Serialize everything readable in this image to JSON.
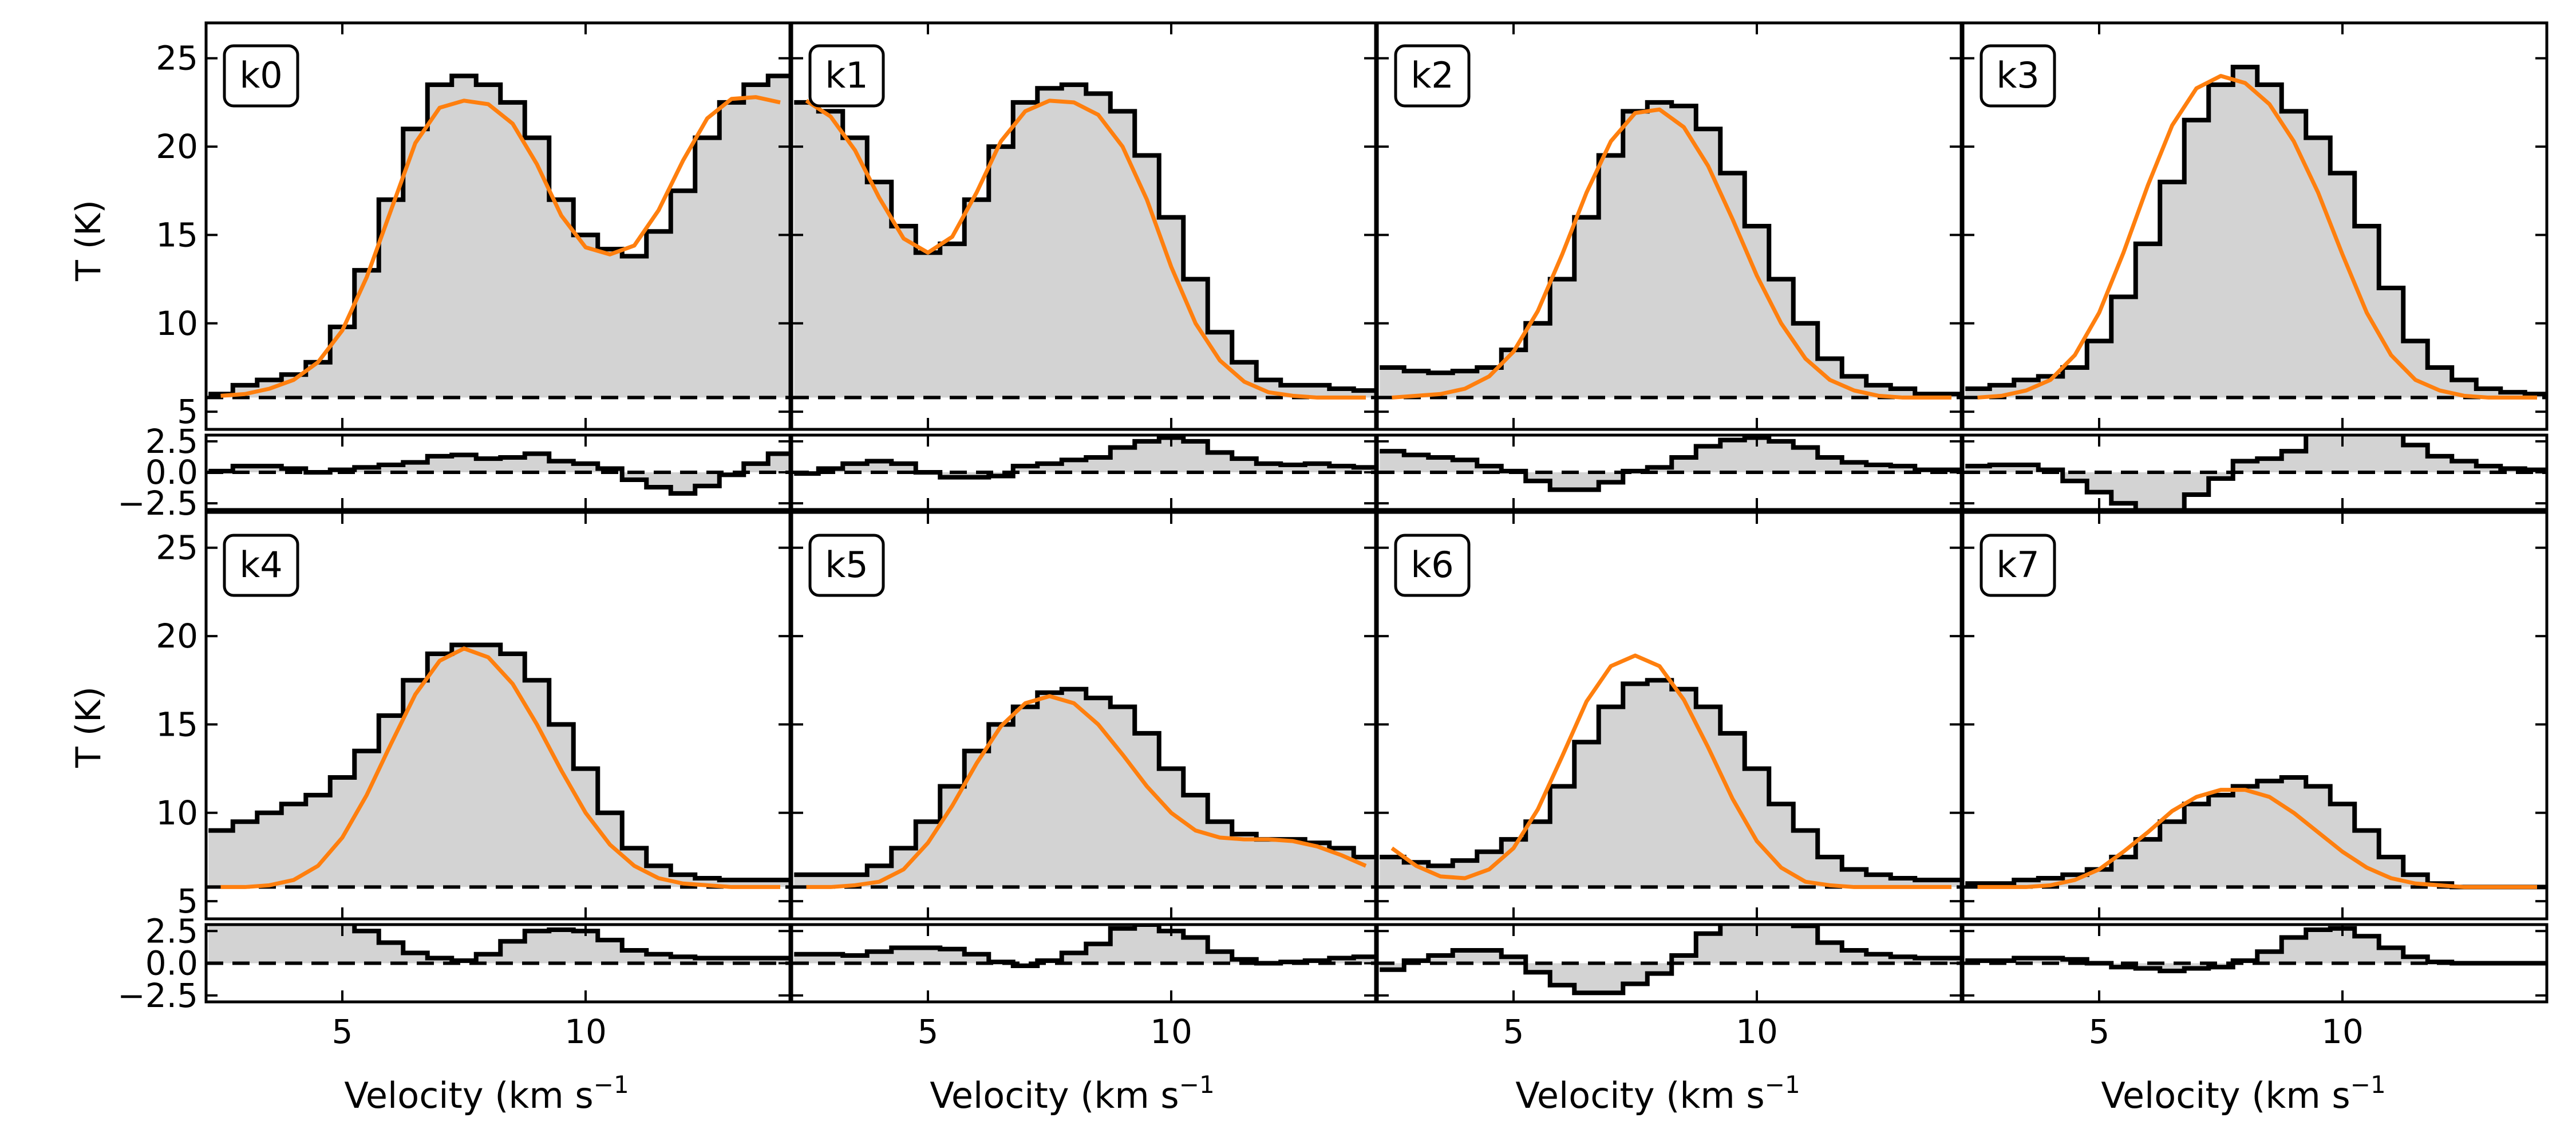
{
  "figure": {
    "ylabel": "T (K)",
    "xlabel": "Velocity (km s",
    "xlabel_sup": "−1",
    "colors": {
      "spectrum": "#000000",
      "fit": "#ff7f0e",
      "fill": "#d3d3d3",
      "baseline": "#000000"
    }
  },
  "chart_data": {
    "type": "line",
    "layout": "4 columns x 2 rows of spectra, each with a residual strip below",
    "xlim": [
      2.2,
      14.2
    ],
    "ylim_main": [
      4,
      27
    ],
    "ylim_residual": [
      -3,
      3
    ],
    "x_ticks": [
      5,
      10
    ],
    "x_tick_labels": [
      "5",
      "10"
    ],
    "y_ticks_main": [
      5,
      10,
      15,
      20,
      25
    ],
    "y_tick_labels_main": [
      "5",
      "10",
      "15",
      "20",
      "25"
    ],
    "y_ticks_residual": [
      -2.5,
      0.0,
      2.5
    ],
    "y_tick_labels_residual": [
      "−2.5",
      "0.0",
      "2.5"
    ],
    "baseline": 5.8,
    "series_description": "black step = observed spectrum, orange = model fit, dashed = baseline",
    "panels": [
      {
        "label": "k0",
        "data": {
          "x": [
            2.5,
            3,
            3.5,
            4,
            4.5,
            5,
            5.5,
            6,
            6.5,
            7,
            7.5,
            8,
            8.5,
            9,
            9.5,
            10,
            10.5,
            11,
            11.5,
            12,
            12.5,
            13,
            13.5,
            14
          ],
          "y": [
            6.0,
            6.5,
            6.8,
            7.1,
            7.8,
            9.8,
            13.0,
            17.0,
            21.0,
            23.5,
            24.0,
            23.5,
            22.5,
            20.5,
            17.0,
            15.0,
            14.2,
            13.8,
            15.2,
            17.5,
            20.5,
            22.5,
            23.5,
            24.0
          ],
          "fit": [
            5.9,
            6.0,
            6.3,
            6.8,
            7.8,
            9.6,
            12.6,
            16.4,
            20.2,
            22.2,
            22.6,
            22.4,
            21.3,
            19.0,
            16.1,
            14.3,
            13.9,
            14.4,
            16.4,
            19.2,
            21.6,
            22.7,
            22.8,
            22.5
          ]
        }
      },
      {
        "label": "k1",
        "data": {
          "x": [
            2.5,
            3,
            3.5,
            4,
            4.5,
            5,
            5.5,
            6,
            6.5,
            7,
            7.5,
            8,
            8.5,
            9,
            9.5,
            10,
            10.5,
            11,
            11.5,
            12,
            12.5,
            13,
            13.5,
            14
          ],
          "y": [
            22.5,
            22.0,
            20.5,
            18.0,
            15.5,
            14.0,
            14.5,
            17.0,
            20.0,
            22.5,
            23.3,
            23.5,
            23.0,
            22.0,
            19.5,
            16.0,
            12.5,
            9.5,
            7.8,
            6.8,
            6.5,
            6.5,
            6.3,
            6.2
          ],
          "fit": [
            22.6,
            21.7,
            19.8,
            17.1,
            14.8,
            14.0,
            14.9,
            17.4,
            20.3,
            22.0,
            22.6,
            22.5,
            21.8,
            20.0,
            17.0,
            13.2,
            10.0,
            7.9,
            6.7,
            6.1,
            5.9,
            5.8,
            5.8,
            5.8
          ]
        }
      },
      {
        "label": "k2",
        "data": {
          "x": [
            2.5,
            3,
            3.5,
            4,
            4.5,
            5,
            5.5,
            6,
            6.5,
            7,
            7.5,
            8,
            8.5,
            9,
            9.5,
            10,
            10.5,
            11,
            11.5,
            12,
            12.5,
            13,
            13.5,
            14
          ],
          "y": [
            7.5,
            7.3,
            7.2,
            7.3,
            7.5,
            8.5,
            10.0,
            12.5,
            16.0,
            19.5,
            22.0,
            22.5,
            22.3,
            21.0,
            18.5,
            15.5,
            12.5,
            10.0,
            8.0,
            7.0,
            6.5,
            6.3,
            6.0,
            6.0
          ],
          "fit": [
            5.8,
            5.9,
            6.0,
            6.3,
            7.0,
            8.4,
            10.7,
            13.9,
            17.4,
            20.3,
            21.9,
            22.1,
            21.1,
            18.9,
            15.9,
            12.7,
            10.0,
            8.0,
            6.8,
            6.2,
            5.9,
            5.8,
            5.8,
            5.8
          ]
        }
      },
      {
        "label": "k3",
        "data": {
          "x": [
            2.5,
            3,
            3.5,
            4,
            4.5,
            5,
            5.5,
            6,
            6.5,
            7,
            7.5,
            8,
            8.5,
            9,
            9.5,
            10,
            10.5,
            11,
            11.5,
            12,
            12.5,
            13,
            13.5,
            14
          ],
          "y": [
            6.3,
            6.5,
            6.8,
            7.0,
            7.5,
            9.0,
            11.5,
            14.5,
            18.0,
            21.5,
            23.5,
            24.5,
            23.5,
            22.0,
            20.5,
            18.5,
            15.5,
            12.0,
            9.0,
            7.5,
            6.8,
            6.3,
            6.1,
            6.0
          ],
          "fit": [
            5.8,
            5.9,
            6.2,
            6.8,
            8.2,
            10.6,
            14.0,
            17.8,
            21.2,
            23.3,
            24.0,
            23.6,
            22.4,
            20.3,
            17.4,
            13.9,
            10.6,
            8.2,
            6.8,
            6.2,
            5.9,
            5.8,
            5.8,
            5.8
          ]
        }
      },
      {
        "label": "k4",
        "data": {
          "x": [
            2.5,
            3,
            3.5,
            4,
            4.5,
            5,
            5.5,
            6,
            6.5,
            7,
            7.5,
            8,
            8.5,
            9,
            9.5,
            10,
            10.5,
            11,
            11.5,
            12,
            12.5,
            13,
            13.5,
            14
          ],
          "y": [
            9.0,
            9.5,
            10.0,
            10.5,
            11.0,
            12.0,
            13.5,
            15.5,
            17.5,
            19.0,
            19.5,
            19.5,
            19.0,
            17.5,
            15.0,
            12.5,
            10.0,
            8.0,
            7.0,
            6.5,
            6.3,
            6.2,
            6.2,
            6.2
          ],
          "fit": [
            5.8,
            5.8,
            5.9,
            6.2,
            7.0,
            8.6,
            11.0,
            13.9,
            16.7,
            18.6,
            19.3,
            18.8,
            17.3,
            15.0,
            12.4,
            10.0,
            8.2,
            7.0,
            6.3,
            6.0,
            5.9,
            5.8,
            5.8,
            5.8
          ]
        }
      },
      {
        "label": "k5",
        "data": {
          "x": [
            2.5,
            3,
            3.5,
            4,
            4.5,
            5,
            5.5,
            6,
            6.5,
            7,
            7.5,
            8,
            8.5,
            9,
            9.5,
            10,
            10.5,
            11,
            11.5,
            12,
            12.5,
            13,
            13.5,
            14
          ],
          "y": [
            6.5,
            6.5,
            6.5,
            7.0,
            8.0,
            9.5,
            11.5,
            13.5,
            15.0,
            16.0,
            16.8,
            17.0,
            16.5,
            16.0,
            14.5,
            12.5,
            11.0,
            9.5,
            8.8,
            8.5,
            8.5,
            8.3,
            8.0,
            7.5
          ],
          "fit": [
            5.8,
            5.8,
            5.9,
            6.1,
            6.8,
            8.3,
            10.4,
            12.8,
            14.9,
            16.2,
            16.6,
            16.2,
            15.0,
            13.3,
            11.5,
            10.0,
            9.0,
            8.6,
            8.5,
            8.5,
            8.4,
            8.1,
            7.6,
            7.0
          ]
        }
      },
      {
        "label": "k6",
        "data": {
          "x": [
            2.5,
            3,
            3.5,
            4,
            4.5,
            5,
            5.5,
            6,
            6.5,
            7,
            7.5,
            8,
            8.5,
            9,
            9.5,
            10,
            10.5,
            11,
            11.5,
            12,
            12.5,
            13,
            13.5,
            14
          ],
          "y": [
            7.5,
            7.2,
            7.0,
            7.3,
            7.8,
            8.5,
            9.5,
            11.5,
            14.0,
            16.0,
            17.3,
            17.5,
            17.0,
            16.0,
            14.5,
            12.5,
            10.5,
            9.0,
            7.5,
            6.8,
            6.5,
            6.3,
            6.2,
            6.2
          ],
          "fit": [
            8.0,
            7.0,
            6.4,
            6.3,
            6.8,
            8.0,
            10.2,
            13.2,
            16.3,
            18.3,
            18.9,
            18.3,
            16.4,
            13.7,
            10.8,
            8.4,
            6.9,
            6.1,
            5.9,
            5.8,
            5.8,
            5.8,
            5.8,
            5.8
          ]
        }
      },
      {
        "label": "k7",
        "data": {
          "x": [
            2.5,
            3,
            3.5,
            4,
            4.5,
            5,
            5.5,
            6,
            6.5,
            7,
            7.5,
            8,
            8.5,
            9,
            9.5,
            10,
            10.5,
            11,
            11.5,
            12,
            12.5,
            13,
            13.5,
            14
          ],
          "y": [
            6.0,
            6.0,
            6.2,
            6.3,
            6.5,
            6.8,
            7.5,
            8.5,
            9.5,
            10.5,
            11.0,
            11.5,
            11.8,
            12.0,
            11.5,
            10.5,
            9.0,
            7.5,
            6.5,
            6.0,
            5.8,
            5.8,
            5.8,
            5.8
          ],
          "fit": [
            5.8,
            5.8,
            5.8,
            5.9,
            6.2,
            6.8,
            7.8,
            8.9,
            10.1,
            10.9,
            11.3,
            11.3,
            10.9,
            10.0,
            8.9,
            7.8,
            6.9,
            6.3,
            6.0,
            5.9,
            5.8,
            5.8,
            5.8,
            5.8
          ]
        }
      }
    ]
  }
}
